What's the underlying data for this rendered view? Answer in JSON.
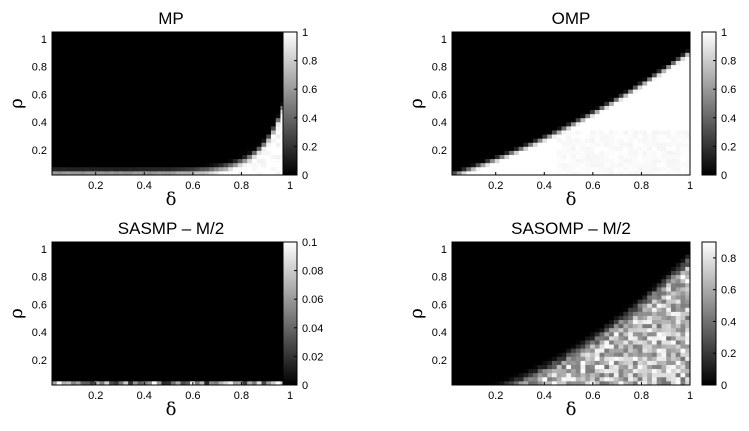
{
  "chart_data": [
    {
      "type": "heatmap",
      "title": "MP",
      "xlabel": "δ",
      "ylabel": "ρ",
      "xlim": [
        0.02,
        1.0
      ],
      "ylim": [
        0.02,
        1.05
      ],
      "xticks": [
        "0.2",
        "0.4",
        "0.6",
        "0.8",
        "1"
      ],
      "yticks": [
        "0.2",
        "0.4",
        "0.6",
        "0.8",
        "1"
      ],
      "colorbar_ticks": [
        "0",
        "0.2",
        "0.4",
        "0.6",
        "0.8",
        "1"
      ],
      "clim": [
        0,
        1
      ],
      "colormap": "gray",
      "pattern": "success only in bottom-right corner: bright band along rho < ~0.1, rising steeply near delta = 1 up to rho ~0.7"
    },
    {
      "type": "heatmap",
      "title": "OMP",
      "xlabel": "δ",
      "ylabel": "ρ",
      "xlim": [
        0.02,
        1.0
      ],
      "ylim": [
        0.02,
        1.05
      ],
      "xticks": [
        "0.2",
        "0.4",
        "0.6",
        "0.8",
        "1"
      ],
      "yticks": [
        "0.2",
        "0.4",
        "0.6",
        "0.8",
        "1"
      ],
      "colorbar_ticks": [
        "0",
        "0.2",
        "0.4",
        "0.6",
        "0.8",
        "1"
      ],
      "clim": [
        0,
        1
      ],
      "colormap": "gray",
      "pattern": "white region below a transition curve rising from rho ~0.05 at delta 0.05 to rho ~0.95 at delta 1"
    },
    {
      "type": "heatmap",
      "title": "SASMP – M/2",
      "xlabel": "δ",
      "ylabel": "ρ",
      "xlim": [
        0.02,
        1.0
      ],
      "ylim": [
        0.02,
        1.05
      ],
      "xticks": [
        "0.2",
        "0.4",
        "0.6",
        "0.8",
        "1"
      ],
      "yticks": [
        "0.2",
        "0.4",
        "0.6",
        "0.8",
        "1"
      ],
      "colorbar_ticks": [
        "0",
        "0.02",
        "0.04",
        "0.06",
        "0.08",
        "0.1"
      ],
      "clim": [
        0,
        0.1
      ],
      "colormap": "gray",
      "pattern": "almost entirely black; only the lowest rho row shows speckled gray/white values"
    },
    {
      "type": "heatmap",
      "title": "SASOMP – M/2",
      "xlabel": "δ",
      "ylabel": "ρ",
      "xlim": [
        0.02,
        1.0
      ],
      "ylim": [
        0.02,
        1.05
      ],
      "xticks": [
        "0.2",
        "0.4",
        "0.6",
        "0.8",
        "1"
      ],
      "yticks": [
        "0.2",
        "0.4",
        "0.6",
        "0.8",
        "1"
      ],
      "colorbar_ticks": [
        "0",
        "0.2",
        "0.4",
        "0.6",
        "0.8"
      ],
      "clim": [
        0,
        0.9
      ],
      "colormap": "gray",
      "pattern": "noisy gray/white region below a curve rising from rho ~0.05 at delta 0.1 to rho ~1 at delta 1"
    }
  ]
}
